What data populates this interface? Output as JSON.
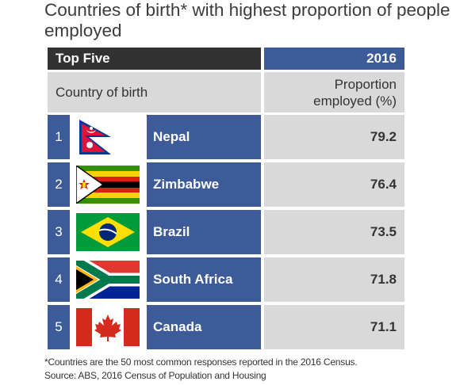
{
  "title": "Countries of birth* with highest proportion of people employed",
  "header": {
    "label": "Top Five",
    "year": "2016"
  },
  "columns": {
    "country": "Country of birth",
    "proportion_line1": "Proportion",
    "proportion_line2": "employed (%)"
  },
  "chart_data": {
    "type": "table",
    "title": "Countries of birth* with highest proportion of people employed",
    "columns": [
      "Country of birth",
      "Proportion employed (%)"
    ],
    "rows": [
      {
        "rank": "1",
        "country": "Nepal",
        "flag": "nepal-flag",
        "value": "79.2"
      },
      {
        "rank": "2",
        "country": "Zimbabwe",
        "flag": "zimbabwe-flag",
        "value": "76.4"
      },
      {
        "rank": "3",
        "country": "Brazil",
        "flag": "brazil-flag",
        "value": "73.5"
      },
      {
        "rank": "4",
        "country": "South Africa",
        "flag": "south-africa-flag",
        "value": "71.8"
      },
      {
        "rank": "5",
        "country": "Canada",
        "flag": "canada-flag",
        "value": "71.1"
      }
    ]
  },
  "footnote": "*Countries are the 50 most common responses reported in the 2016 Census.",
  "source": "Source: ABS, 2016 Census of Population and Housing",
  "colors": {
    "header_dark": "#323232",
    "accent_blue": "#3d5a99",
    "cell_grey": "#d9d9d9"
  }
}
